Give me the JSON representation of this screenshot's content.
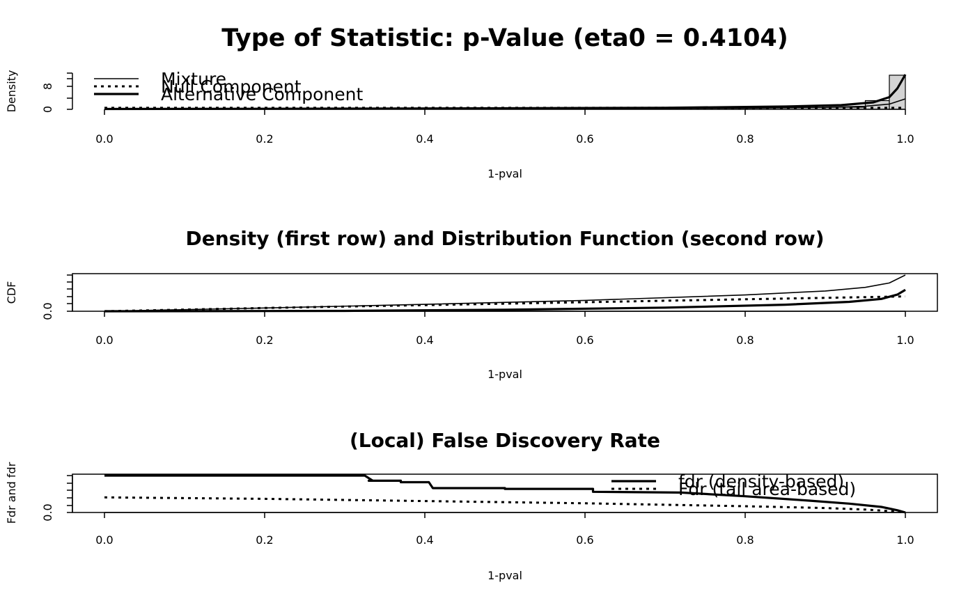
{
  "page_title": "Type of Statistic: p-Value (eta0 = 0.4104)",
  "chart_data": [
    {
      "type": "area",
      "subtitle": "",
      "xlabel": "1-pval",
      "ylabel": "Density",
      "xlim": [
        0,
        1
      ],
      "ylim": [
        0,
        10
      ],
      "x_ticks": [
        0.0,
        0.2,
        0.4,
        0.6,
        0.8,
        1.0
      ],
      "x_tick_labels": [
        "0.0",
        "0.2",
        "0.4",
        "0.6",
        "0.8",
        "1.0"
      ],
      "y_tick_labels": [
        "0",
        "8"
      ],
      "legend": {
        "position": "top-left",
        "entries": [
          "Mixture",
          "Null Component",
          "Alternative Component"
        ]
      },
      "histogram": {
        "bins": [
          [
            0.9,
            0.95,
            0.6
          ],
          [
            0.95,
            0.98,
            2.5
          ],
          [
            0.98,
            1.0,
            9.8
          ]
        ]
      },
      "series": [
        {
          "name": "Mixture",
          "style": "solid-thin",
          "x": [
            0.0,
            0.2,
            0.4,
            0.6,
            0.8,
            0.9,
            0.95,
            0.98,
            1.0
          ],
          "y": [
            0.1,
            0.12,
            0.15,
            0.2,
            0.35,
            0.55,
            0.9,
            1.5,
            3.0
          ]
        },
        {
          "name": "Null Component",
          "style": "dotted",
          "x": [
            0.0,
            1.0
          ],
          "y": [
            0.41,
            0.41
          ]
        },
        {
          "name": "Alternative Component",
          "style": "solid-thick",
          "x": [
            0.0,
            0.3,
            0.5,
            0.7,
            0.85,
            0.92,
            0.96,
            0.98,
            0.99,
            0.995,
            1.0
          ],
          "y": [
            0.1,
            0.2,
            0.3,
            0.45,
            0.8,
            1.2,
            2.0,
            3.5,
            6.0,
            8.0,
            10.0
          ]
        }
      ]
    },
    {
      "type": "line",
      "title": "Density (first row) and Distribution Function (second row)",
      "xlabel": "1-pval",
      "ylabel": "CDF",
      "xlim": [
        0,
        1
      ],
      "ylim": [
        0,
        1
      ],
      "x_ticks": [
        0.0,
        0.2,
        0.4,
        0.6,
        0.8,
        1.0
      ],
      "x_tick_labels": [
        "0.0",
        "0.2",
        "0.4",
        "0.6",
        "0.8",
        "1.0"
      ],
      "y_tick_labels": [
        "0.0"
      ],
      "series": [
        {
          "name": "Mixture",
          "style": "solid-thin",
          "x": [
            0.0,
            0.2,
            0.4,
            0.6,
            0.8,
            0.9,
            0.95,
            0.98,
            1.0
          ],
          "y": [
            0.0,
            0.09,
            0.19,
            0.3,
            0.45,
            0.56,
            0.66,
            0.78,
            1.0
          ]
        },
        {
          "name": "Null Component",
          "style": "dotted",
          "x": [
            0.0,
            0.2,
            0.4,
            0.6,
            0.8,
            1.0
          ],
          "y": [
            0.0,
            0.09,
            0.17,
            0.25,
            0.33,
            0.41
          ]
        },
        {
          "name": "Alternative Component",
          "style": "solid-thick",
          "x": [
            0.0,
            0.3,
            0.5,
            0.7,
            0.85,
            0.93,
            0.97,
            0.99,
            1.0
          ],
          "y": [
            0.0,
            0.01,
            0.04,
            0.1,
            0.18,
            0.26,
            0.34,
            0.46,
            0.59
          ]
        }
      ]
    },
    {
      "type": "line",
      "title": "(Local) False Discovery Rate",
      "xlabel": "1-pval",
      "ylabel": "Fdr and fdr",
      "xlim": [
        0,
        1
      ],
      "ylim": [
        0,
        1
      ],
      "x_ticks": [
        0.0,
        0.2,
        0.4,
        0.6,
        0.8,
        1.0
      ],
      "x_tick_labels": [
        "0.0",
        "0.2",
        "0.4",
        "0.6",
        "0.8",
        "1.0"
      ],
      "y_tick_labels": [
        "0.0"
      ],
      "legend": {
        "position": "top-right",
        "entries": [
          "fdr (density-based)",
          "Fdr (tail area-based)"
        ]
      },
      "series": [
        {
          "name": "fdr (density-based)",
          "style": "solid-thick",
          "x": [
            0.0,
            0.325,
            0.33,
            0.335,
            0.33,
            0.37,
            0.37,
            0.405,
            0.41,
            0.5,
            0.5,
            0.61,
            0.61,
            0.72,
            0.8,
            0.88,
            0.93,
            0.97,
            0.99,
            1.0
          ],
          "y": [
            1.0,
            1.0,
            0.93,
            0.86,
            0.86,
            0.86,
            0.82,
            0.82,
            0.66,
            0.66,
            0.64,
            0.64,
            0.56,
            0.54,
            0.44,
            0.32,
            0.24,
            0.15,
            0.06,
            0.0
          ]
        },
        {
          "name": "Fdr (tail area-based)",
          "style": "dotted",
          "x": [
            0.0,
            0.2,
            0.4,
            0.6,
            0.8,
            0.9,
            0.95,
            0.98,
            1.0
          ],
          "y": [
            0.41,
            0.37,
            0.31,
            0.25,
            0.17,
            0.12,
            0.08,
            0.04,
            0.0
          ]
        }
      ]
    }
  ]
}
